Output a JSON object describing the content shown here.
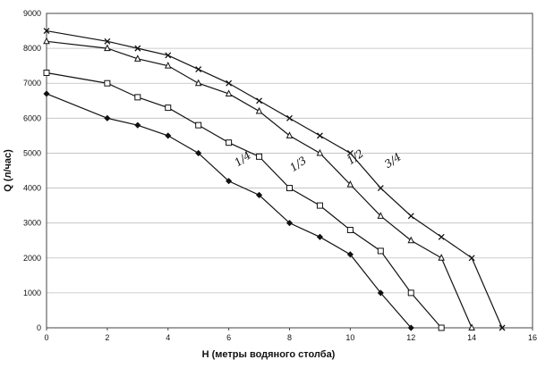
{
  "chart_data": {
    "type": "line",
    "xlabel": "H (метры водяного столба)",
    "ylabel": "Q (л/час)",
    "xlim": [
      0,
      16
    ],
    "ylim": [
      0,
      9000
    ],
    "x_ticks": [
      "0",
      "2",
      "4",
      "6",
      "8",
      "10",
      "12",
      "14",
      "16"
    ],
    "y_ticks": [
      "0",
      "1000",
      "2000",
      "3000",
      "4000",
      "5000",
      "6000",
      "7000",
      "8000",
      "9000"
    ],
    "grid": "horizontal",
    "series": [
      {
        "name": "3/4",
        "marker": "x",
        "x": [
          0,
          2,
          3,
          4,
          5,
          6,
          7,
          8,
          9,
          10,
          11,
          12,
          13,
          14,
          15
        ],
        "values": [
          8500,
          8200,
          8000,
          7800,
          7400,
          7000,
          6500,
          6000,
          5500,
          5000,
          4000,
          3200,
          2600,
          2000,
          0
        ]
      },
      {
        "name": "1/2",
        "marker": "triangle",
        "x": [
          0,
          2,
          3,
          4,
          5,
          6,
          7,
          8,
          9,
          10,
          11,
          12,
          13,
          14
        ],
        "values": [
          8200,
          8000,
          7700,
          7500,
          7000,
          6700,
          6200,
          5500,
          5000,
          4100,
          3200,
          2500,
          2000,
          0
        ]
      },
      {
        "name": "1/3",
        "marker": "square",
        "x": [
          0,
          2,
          3,
          4,
          5,
          6,
          7,
          8,
          9,
          10,
          11,
          12,
          13
        ],
        "values": [
          7300,
          7000,
          6600,
          6300,
          5800,
          5300,
          4900,
          4000,
          3500,
          2800,
          2200,
          1000,
          0
        ]
      },
      {
        "name": "1/4",
        "marker": "diamond",
        "x": [
          0,
          2,
          3,
          4,
          5,
          6,
          7,
          8,
          9,
          10,
          11,
          12
        ],
        "values": [
          6700,
          6000,
          5800,
          5500,
          5000,
          4200,
          3800,
          3000,
          2600,
          2100,
          1000,
          0
        ]
      }
    ]
  }
}
